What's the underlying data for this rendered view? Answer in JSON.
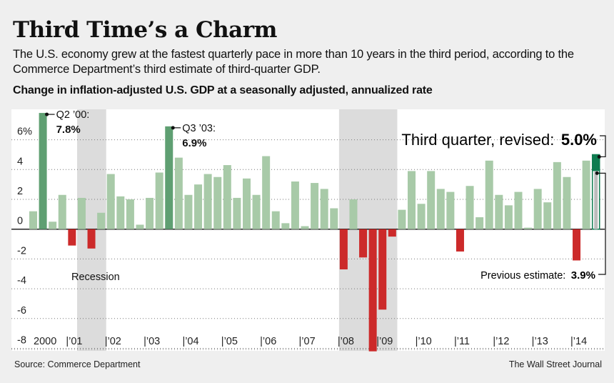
{
  "header": {
    "title": "Third Time’s a Charm",
    "subtitle": "The U.S. economy grew at the fastest quarterly pace in more than 10 years in the third period, according to the Commerce Department’s third estimate of third-quarter GDP.",
    "chart_label": "Change in inflation-adjusted U.S. GDP at a seasonally adjusted, annualized rate"
  },
  "footer": {
    "source": "Source: Commerce Department",
    "credit": "The Wall Street Journal"
  },
  "colors": {
    "positive": "#a8caa8",
    "highlight": "#5f9f72",
    "negative": "#cc2a2a",
    "revised": "#0e7c50",
    "recession": "#dcdcdc"
  },
  "chart_data": {
    "type": "bar",
    "title": "",
    "xlabel": "",
    "ylabel": "",
    "ylim": [
      -8,
      7.8
    ],
    "yticks": [
      6,
      4,
      2,
      0,
      -2,
      -4,
      -6,
      -8
    ],
    "ytick_labels": [
      "6%",
      "4",
      "2",
      "0",
      "-2",
      "-4",
      "-6",
      "-8"
    ],
    "grid": true,
    "x_tick_labels": [
      "2000",
      "|’01",
      "|’02",
      "|’03",
      "|’04",
      "|’05",
      "|’06",
      "|’07",
      "|’08",
      "|’09",
      "|’10",
      "|’11",
      "|’12",
      "|’13",
      "|’14"
    ],
    "start_quarter": "Q1 2000",
    "values": [
      1.2,
      7.8,
      0.5,
      2.3,
      -1.1,
      2.1,
      -1.3,
      1.1,
      3.7,
      2.2,
      2.0,
      0.3,
      2.1,
      3.8,
      6.9,
      4.8,
      2.3,
      3.0,
      3.7,
      3.5,
      4.3,
      2.1,
      3.4,
      2.3,
      4.9,
      1.2,
      0.4,
      3.2,
      0.2,
      3.1,
      2.7,
      1.4,
      -2.7,
      2.0,
      -1.9,
      -8.2,
      -5.4,
      -0.5,
      1.3,
      3.9,
      1.7,
      3.9,
      2.7,
      2.5,
      -1.5,
      2.9,
      0.8,
      4.6,
      2.3,
      1.6,
      2.5,
      0.1,
      2.7,
      1.8,
      4.5,
      3.5,
      -2.1,
      4.6,
      5.0
    ],
    "previous_estimate_last": 3.9,
    "recessions": [
      [
        "Q2 2001",
        "Q4 2001"
      ],
      [
        "Q1 2008",
        "Q2 2009"
      ]
    ],
    "recession_label": "Recession",
    "annotations": [
      {
        "quarter_index": 1,
        "label": "Q2 ’00:",
        "value": "7.8%"
      },
      {
        "quarter_index": 14,
        "label": "Q3 ’03:",
        "value": "6.9%"
      }
    ],
    "revised_label": "Third quarter, revised:",
    "revised_value": "5.0%",
    "previous_label": "Previous estimate:",
    "previous_value": "3.9%"
  }
}
